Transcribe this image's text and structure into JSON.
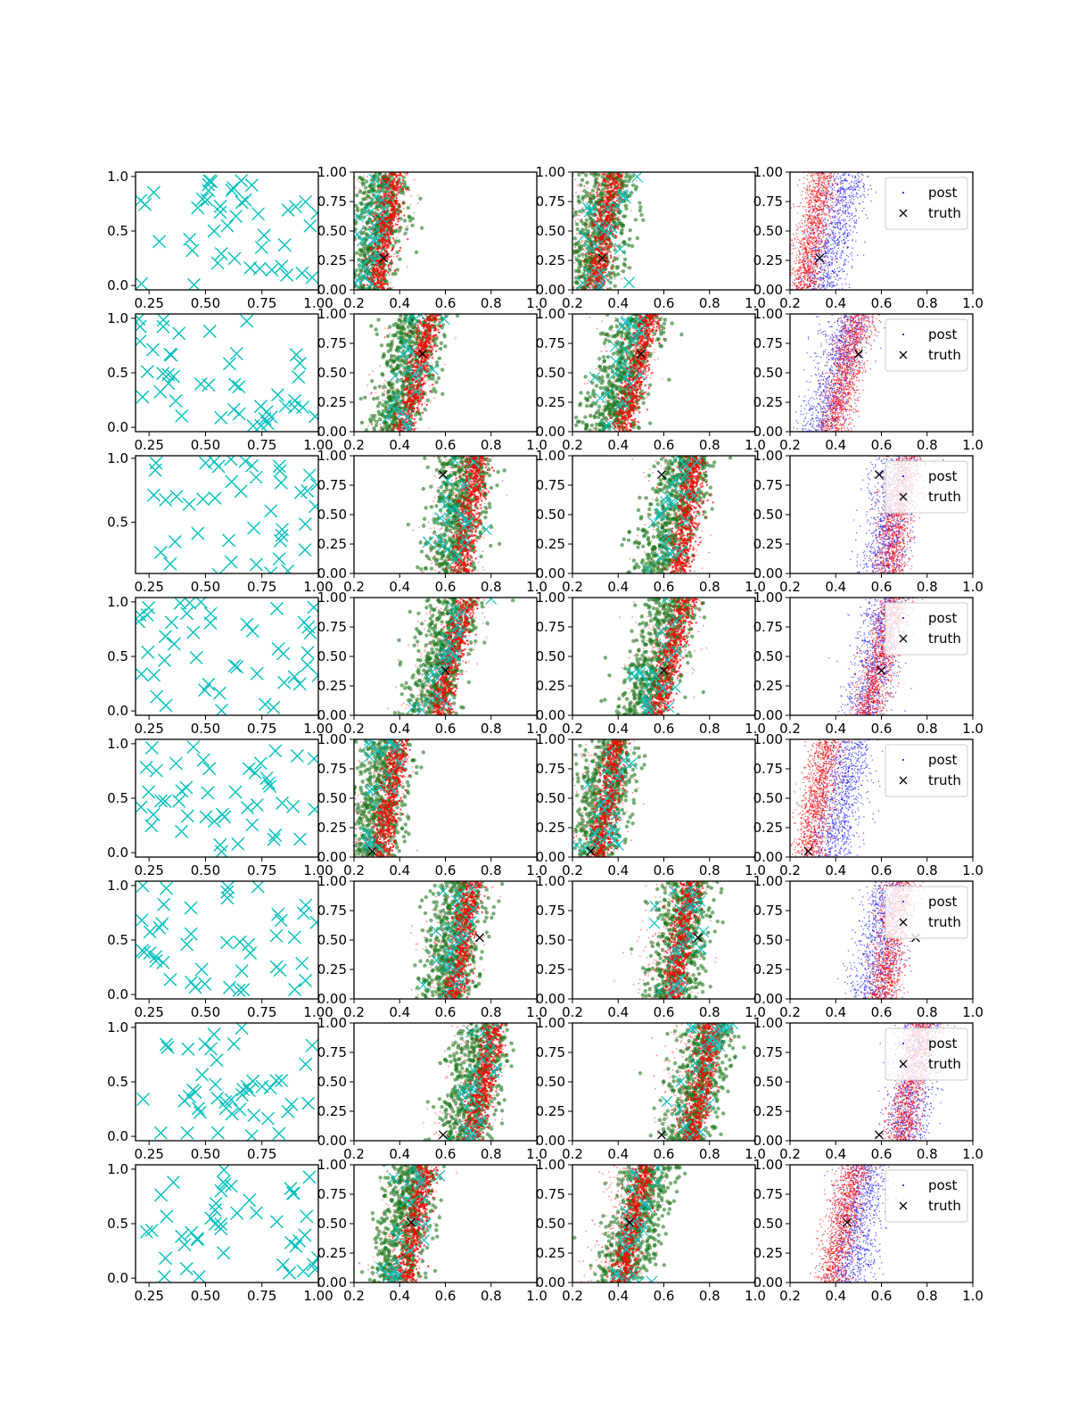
{
  "colors": {
    "cyan": "#00bfbf",
    "green": "#1e7a1e",
    "red": "#ff0000",
    "blue": "#0000ff",
    "black": "#000000",
    "legend_frame": "#cccccc"
  },
  "legend": {
    "post_label": "post",
    "truth_label": "truth",
    "placement": "top-right",
    "rows_with_legend": [
      0,
      1,
      2,
      3,
      4,
      5,
      6,
      7
    ]
  },
  "chart_data": {
    "type": "scatter",
    "layout": {
      "rows": 8,
      "cols": 4
    },
    "col_types": [
      "samples",
      "scatter-green",
      "scatter-green",
      "scatter-posterior"
    ],
    "x_ticks_scatter": [
      "0.2",
      "0.4",
      "0.6",
      "0.8",
      "1.0"
    ],
    "y_ticks_scatter": [
      "0.00",
      "0.25",
      "0.50",
      "0.75",
      "1.00"
    ],
    "xlim_scatter": [
      0.2,
      1.0
    ],
    "ylim_scatter": [
      0.0,
      1.0
    ],
    "samples_panels": {
      "xlim": [
        0.19,
        1.0
      ],
      "ylim": [
        -0.04,
        1.04
      ],
      "x_ticks": [
        "0.25",
        "0.50",
        "0.75",
        "1.00"
      ],
      "y_ticks": [
        "0.0",
        "0.5",
        "1.0"
      ],
      "row_overrides": {
        "2": {
          "y_ticks": [
            "0.5",
            "1.0"
          ],
          "ylim": [
            0.1,
            1.02
          ]
        },
        "6": {
          "x_ticks": [
            "0.25",
            "0.50",
            "0.75"
          ]
        }
      },
      "marker": "x",
      "n_points": 45
    },
    "rows": [
      {
        "truth": [
          0.33,
          0.27
        ],
        "band": [
          0.28,
          0.36,
          0.38
        ],
        "green_band": [
          0.3,
          0.4,
          0.42
        ],
        "blue_band": [
          0.36,
          0.48,
          0.55
        ]
      },
      {
        "truth": [
          0.5,
          0.66
        ],
        "band": [
          0.4,
          0.52,
          0.48
        ],
        "green_band": [
          0.38,
          0.52,
          0.46
        ],
        "blue_band": [
          0.35,
          0.5,
          0.4
        ]
      },
      {
        "truth": [
          0.59,
          0.84
        ],
        "band": [
          0.65,
          0.72,
          0.8
        ],
        "green_band": [
          0.6,
          0.74,
          0.7
        ],
        "blue_band": [
          0.62,
          0.7,
          0.6
        ]
      },
      {
        "truth": [
          0.6,
          0.38
        ],
        "band": [
          0.55,
          0.68,
          0.76
        ],
        "green_band": [
          0.52,
          0.68,
          0.7
        ],
        "blue_band": [
          0.55,
          0.66,
          0.55
        ]
      },
      {
        "truth": [
          0.28,
          0.05
        ],
        "band": [
          0.3,
          0.38,
          0.38
        ],
        "green_band": [
          0.32,
          0.42,
          0.4
        ],
        "blue_band": [
          0.4,
          0.5,
          0.5
        ]
      },
      {
        "truth": [
          0.75,
          0.52
        ],
        "band": [
          0.62,
          0.7,
          0.8
        ],
        "green_band": [
          0.66,
          0.74,
          0.74
        ],
        "blue_band": [
          0.58,
          0.66,
          0.6
        ]
      },
      {
        "truth": [
          0.59,
          0.05
        ],
        "band": [
          0.7,
          0.8,
          0.8
        ],
        "green_band": [
          0.72,
          0.84,
          0.76
        ],
        "blue_band": [
          0.72,
          0.8,
          0.6
        ]
      },
      {
        "truth": [
          0.45,
          0.51
        ],
        "band": [
          0.4,
          0.5,
          0.52
        ],
        "green_band": [
          0.44,
          0.58,
          0.56
        ],
        "blue_band": [
          0.48,
          0.56,
          0.5
        ]
      }
    ]
  }
}
